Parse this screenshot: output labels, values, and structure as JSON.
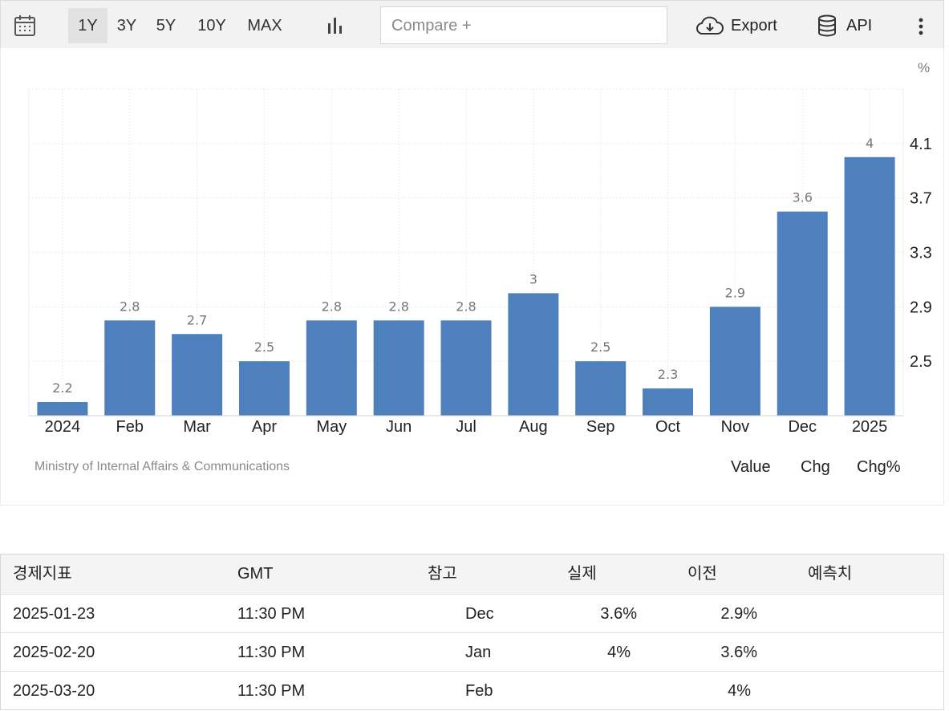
{
  "toolbar": {
    "ranges": [
      "1Y",
      "3Y",
      "5Y",
      "10Y",
      "MAX"
    ],
    "active_range": "1Y",
    "compare_placeholder": "Compare  +",
    "export_label": "Export",
    "api_label": "API"
  },
  "chart_data": {
    "type": "bar",
    "unit": "%",
    "categories": [
      "2024",
      "Feb",
      "Mar",
      "Apr",
      "May",
      "Jun",
      "Jul",
      "Aug",
      "Sep",
      "Oct",
      "Nov",
      "Dec",
      "2025"
    ],
    "values": [
      2.2,
      2.8,
      2.7,
      2.5,
      2.8,
      2.8,
      2.8,
      3,
      2.5,
      2.3,
      2.9,
      3.6,
      4
    ],
    "y_ticks": [
      2.5,
      2.9,
      3.3,
      3.7,
      4.1
    ],
    "ylim": [
      2.1,
      4.5
    ],
    "y_axis_side": "right",
    "bar_color": "#4e80bd",
    "grid": true
  },
  "chart_footer": {
    "source": "Ministry of Internal Affairs & Communications",
    "modes": [
      "Value",
      "Chg",
      "Chg%"
    ],
    "active_mode": "Value",
    "active_color": "#2d8fd9"
  },
  "table": {
    "headers": [
      "경제지표",
      "GMT",
      "참고",
      "실제",
      "이전",
      "예측치"
    ],
    "rows": [
      [
        "2025-01-23",
        "11:30 PM",
        "Dec",
        "3.6%",
        "2.9%",
        ""
      ],
      [
        "2025-02-20",
        "11:30 PM",
        "Jan",
        "4%",
        "3.6%",
        ""
      ],
      [
        "2025-03-20",
        "11:30 PM",
        "Feb",
        "",
        "4%",
        ""
      ]
    ]
  }
}
